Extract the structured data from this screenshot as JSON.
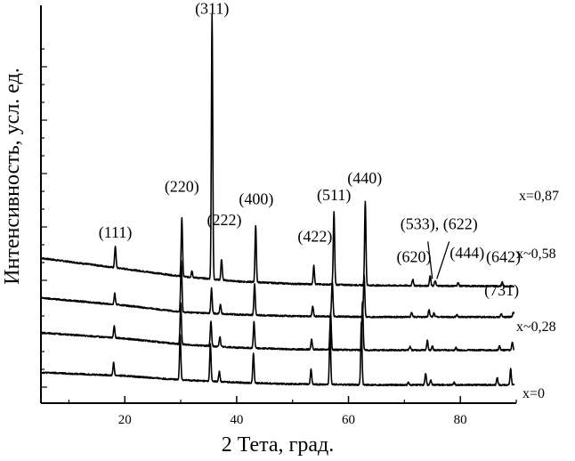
{
  "chart_data": {
    "type": "line",
    "xlabel": "2 Тета, град.",
    "ylabel": "Интенсивность, усл. ед.",
    "xlim": [
      5,
      90
    ],
    "x_ticks": [
      20,
      40,
      60,
      80
    ],
    "x_tick_labels": [
      "20",
      "40",
      "60",
      "80"
    ],
    "grid": false,
    "series": [
      {
        "name": "x=0,87",
        "baseline": [
          [
            5,
            1.5
          ],
          [
            20,
            1.37
          ],
          [
            30,
            1.28
          ],
          [
            40,
            1.22
          ],
          [
            50,
            1.19
          ],
          [
            65,
            1.17
          ],
          [
            90,
            1.16
          ]
        ],
        "peaks": [
          [
            18.3,
            0.26
          ],
          [
            30.2,
            0.7
          ],
          [
            32.0,
            0.08
          ],
          [
            35.6,
            3.2
          ],
          [
            37.3,
            0.25
          ],
          [
            43.4,
            0.68
          ],
          [
            53.8,
            0.22
          ],
          [
            57.4,
            0.88
          ],
          [
            63.0,
            1.02
          ],
          [
            71.5,
            0.08
          ],
          [
            74.6,
            0.12
          ],
          [
            75.5,
            0.06
          ],
          [
            79.6,
            0.04
          ],
          [
            87.5,
            0.05
          ]
        ]
      },
      {
        "name": "x~0,58",
        "baseline": [
          [
            5,
            1.02
          ],
          [
            20,
            0.93
          ],
          [
            30,
            0.85
          ],
          [
            40,
            0.82
          ],
          [
            50,
            0.8
          ],
          [
            65,
            0.79
          ],
          [
            90,
            0.79
          ]
        ],
        "peaks": [
          [
            18.2,
            0.13
          ],
          [
            30.1,
            0.62
          ],
          [
            35.5,
            0.3
          ],
          [
            37.1,
            0.11
          ],
          [
            43.2,
            0.38
          ],
          [
            53.6,
            0.13
          ],
          [
            57.1,
            0.43
          ],
          [
            62.8,
            0.5
          ],
          [
            71.3,
            0.05
          ],
          [
            74.4,
            0.09
          ],
          [
            75.3,
            0.05
          ],
          [
            79.4,
            0.03
          ],
          [
            87.3,
            0.04
          ],
          [
            89.5,
            0.06
          ]
        ]
      },
      {
        "name": "x~0,28",
        "baseline": [
          [
            5,
            0.6
          ],
          [
            20,
            0.53
          ],
          [
            30,
            0.46
          ],
          [
            40,
            0.42
          ],
          [
            50,
            0.4
          ],
          [
            65,
            0.39
          ],
          [
            90,
            0.39
          ]
        ],
        "peaks": [
          [
            18.1,
            0.14
          ],
          [
            30.0,
            0.5
          ],
          [
            35.4,
            0.3
          ],
          [
            37.0,
            0.12
          ],
          [
            43.1,
            0.32
          ],
          [
            53.4,
            0.12
          ],
          [
            56.8,
            0.45
          ],
          [
            62.5,
            0.58
          ],
          [
            71.0,
            0.04
          ],
          [
            74.1,
            0.12
          ],
          [
            75.0,
            0.05
          ],
          [
            79.2,
            0.03
          ],
          [
            87.0,
            0.05
          ],
          [
            89.3,
            0.1
          ]
        ]
      },
      {
        "name": "x=0",
        "baseline": [
          [
            5,
            0.12
          ],
          [
            20,
            0.08
          ],
          [
            30,
            0.03
          ],
          [
            40,
            0.0
          ],
          [
            50,
            -0.02
          ],
          [
            65,
            -0.03
          ],
          [
            90,
            -0.03
          ]
        ],
        "peaks": [
          [
            18.0,
            0.15
          ],
          [
            29.9,
            0.55
          ],
          [
            35.3,
            0.45
          ],
          [
            36.9,
            0.12
          ],
          [
            43.0,
            0.35
          ],
          [
            53.3,
            0.18
          ],
          [
            56.7,
            0.65
          ],
          [
            62.3,
            0.75
          ],
          [
            70.7,
            0.03
          ],
          [
            73.8,
            0.14
          ],
          [
            74.7,
            0.06
          ],
          [
            78.9,
            0.03
          ],
          [
            86.6,
            0.09
          ],
          [
            89.0,
            0.19
          ]
        ]
      }
    ],
    "annotations": [
      {
        "text": "(111)",
        "x": 18.3,
        "y": 1.75
      },
      {
        "text": "(220)",
        "x": 30.2,
        "y": 2.3
      },
      {
        "text": "(311)",
        "x": 35.6,
        "y": 4.45
      },
      {
        "text": "(222)",
        "x": 37.8,
        "y": 1.9
      },
      {
        "text": "(400)",
        "x": 43.5,
        "y": 2.15
      },
      {
        "text": "(422)",
        "x": 54.0,
        "y": 1.7
      },
      {
        "text": "(511)",
        "x": 57.4,
        "y": 2.2
      },
      {
        "text": "(440)",
        "x": 62.9,
        "y": 2.4
      },
      {
        "text": "(620)",
        "x": 71.7,
        "y": 1.45
      },
      {
        "text": "(533), (622)",
        "x": 76.2,
        "y": 1.85
      },
      {
        "text": "(444)",
        "x": 81.2,
        "y": 1.5
      },
      {
        "text": "(642)",
        "x": 87.7,
        "y": 1.45
      },
      {
        "text": "(731)",
        "x": 87.4,
        "y": 1.05
      }
    ]
  }
}
